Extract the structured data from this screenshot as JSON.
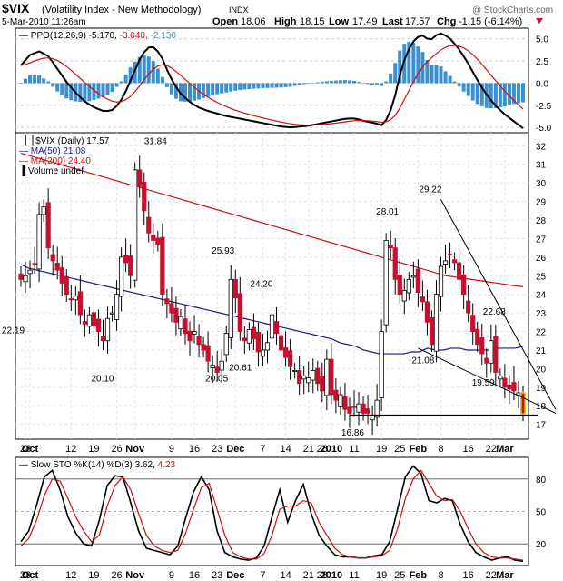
{
  "header": {
    "symbol": "$VIX",
    "name": "(Volatility Index - New Methodology)",
    "exchange": "INDX",
    "datetime": "5-Mar-2010 11:26am",
    "watermark": "@ StockCharts.com",
    "open_label": "Open",
    "open": "18.06",
    "high_label": "High",
    "high": "18.15",
    "low_label": "Low",
    "low": "17.49",
    "last_label": "Last",
    "last": "17.57",
    "chg_label": "Chg",
    "chg": "-1.15 (-6.14%)"
  },
  "ppo_panel": {
    "legend_prefix": "PPO(12,26,9)",
    "v1": "-5.170,",
    "v2": "-3.040,",
    "v3": "-2.130",
    "ticks": [
      "5.0",
      "2.5",
      "0.0",
      "-2.5",
      "-5.0"
    ],
    "ylim": [
      -5.6,
      6.2
    ]
  },
  "price_panel": {
    "legend_symbol": "$VIX (Daily) 17.57",
    "legend_ma50": "MA(50) 21.08",
    "legend_ma200": "MA(200) 24.40",
    "legend_volume": "Volume undef",
    "ticks": [
      "32",
      "31",
      "30",
      "29",
      "28",
      "27",
      "26",
      "25",
      "24",
      "23",
      "22",
      "21",
      "20",
      "19",
      "18",
      "17"
    ],
    "ylim": [
      16.2,
      32.7
    ],
    "annotations": [
      "22.19",
      "31.84",
      "20.10",
      "25.93",
      "20.05",
      "20.61",
      "24.20",
      "28.01",
      "16.86",
      "29.22",
      "21.08",
      "22.68",
      "19.59"
    ]
  },
  "sto_panel": {
    "legend_prefix": "Slow STO %K(14) %D(3)",
    "k": "3.62,",
    "d": "4.23",
    "ticks": [
      "80",
      "50",
      "20"
    ],
    "ylim": [
      0,
      100
    ]
  },
  "x_labels": [
    "28",
    "Oct",
    "12",
    "19",
    "26",
    "Nov",
    "9",
    "16",
    "23",
    "Dec",
    "7",
    "14",
    "21",
    "28",
    "2010",
    "11",
    "19",
    "25",
    "Feb",
    "8",
    "16",
    "22",
    "Mar"
  ],
  "colors": {
    "up": "#ffffff",
    "down": "#c8102e",
    "ma50": "#1a1a8c",
    "ma200": "#cc1111",
    "histogram": "#3c8fd0",
    "ppo": "#000000",
    "signal": "#cc1111",
    "sto_k": "#000000",
    "sto_d": "#cc1111",
    "last_bar": "#f0d000"
  },
  "chart_data": {
    "type": "candlestick",
    "x": [
      "2009-09-25",
      "2009-09-28",
      "2009-09-29",
      "2009-09-30",
      "2009-10-01",
      "2009-10-02",
      "2009-10-05",
      "2009-10-06",
      "2009-10-07",
      "2009-10-08",
      "2009-10-09",
      "2009-10-12",
      "2009-10-13",
      "2009-10-14",
      "2009-10-15",
      "2009-10-16",
      "2009-10-19",
      "2009-10-20",
      "2009-10-21",
      "2009-10-22",
      "2009-10-23",
      "2009-10-26",
      "2009-10-27",
      "2009-10-28",
      "2009-10-29",
      "2009-10-30",
      "2009-11-02",
      "2009-11-03",
      "2009-11-04",
      "2009-11-05",
      "2009-11-06",
      "2009-11-09",
      "2009-11-10",
      "2009-11-11",
      "2009-11-12",
      "2009-11-13",
      "2009-11-16",
      "2009-11-17",
      "2009-11-18",
      "2009-11-19",
      "2009-11-20",
      "2009-11-23",
      "2009-11-24",
      "2009-11-25",
      "2009-11-27",
      "2009-11-30",
      "2009-12-01",
      "2009-12-02",
      "2009-12-03",
      "2009-12-04",
      "2009-12-07",
      "2009-12-08",
      "2009-12-09",
      "2009-12-10",
      "2009-12-11",
      "2009-12-14",
      "2009-12-15",
      "2009-12-16",
      "2009-12-17",
      "2009-12-18",
      "2009-12-21",
      "2009-12-22",
      "2009-12-23",
      "2009-12-24",
      "2009-12-28",
      "2009-12-29",
      "2009-12-30",
      "2009-12-31",
      "2010-01-04",
      "2010-01-05",
      "2010-01-06",
      "2010-01-07",
      "2010-01-08",
      "2010-01-11",
      "2010-01-12",
      "2010-01-13",
      "2010-01-14",
      "2010-01-15",
      "2010-01-19",
      "2010-01-20",
      "2010-01-21",
      "2010-01-22",
      "2010-01-25",
      "2010-01-26",
      "2010-01-27",
      "2010-01-28",
      "2010-01-29",
      "2010-02-01",
      "2010-02-02",
      "2010-02-03",
      "2010-02-04",
      "2010-02-05",
      "2010-02-08",
      "2010-02-09",
      "2010-02-10",
      "2010-02-11",
      "2010-02-12",
      "2010-02-16",
      "2010-02-17",
      "2010-02-18",
      "2010-02-19",
      "2010-02-22",
      "2010-02-23",
      "2010-02-24",
      "2010-02-25",
      "2010-02-26",
      "2010-03-01",
      "2010-03-02",
      "2010-03-03",
      "2010-03-04",
      "2010-03-05"
    ],
    "close": [
      24.8,
      25.0,
      25.3,
      25.6,
      28.3,
      28.7,
      26.5,
      25.8,
      25.3,
      24.6,
      24.0,
      23.7,
      23.9,
      22.9,
      22.4,
      22.9,
      22.3,
      22.0,
      21.5,
      22.7,
      23.0,
      24.0,
      26.0,
      25.7,
      25.0,
      30.7,
      29.8,
      28.5,
      27.3,
      26.9,
      26.7,
      24.0,
      23.5,
      23.0,
      22.5,
      22.8,
      21.9,
      21.5,
      22.0,
      21.3,
      21.0,
      20.4,
      20.2,
      19.8,
      20.4,
      21.9,
      24.8,
      23.8,
      22.0,
      21.5,
      22.1,
      21.6,
      20.9,
      21.0,
      21.4,
      22.9,
      21.9,
      21.0,
      20.6,
      20.1,
      19.9,
      19.2,
      19.6,
      19.5,
      19.9,
      19.2,
      18.8,
      20.5,
      18.6,
      18.3,
      18.6,
      17.8,
      17.6,
      17.9,
      18.1,
      17.6,
      17.6,
      17.5,
      18.3,
      22.0,
      26.9,
      26.5,
      24.8,
      24.0,
      24.2,
      24.8,
      25.0,
      24.1,
      23.6,
      22.5,
      21.3,
      24.0,
      25.5,
      25.8,
      26.1,
      25.7,
      24.8,
      24.0,
      23.0,
      22.0,
      21.3,
      20.8,
      20.3,
      21.5,
      19.8,
      19.6,
      19.0,
      18.9,
      18.8,
      18.7,
      17.57
    ],
    "ma50": [
      25.6,
      25.4,
      25.3,
      25.2,
      25.1,
      25.0,
      24.9,
      24.8,
      24.7,
      24.6,
      24.5,
      24.4,
      24.3,
      24.2,
      24.1,
      24.0,
      23.9,
      23.8,
      23.7,
      23.6,
      23.5,
      23.4,
      23.3,
      23.2,
      23.1,
      23.0,
      22.9,
      22.8,
      22.7,
      22.6,
      22.5,
      22.4,
      22.3,
      22.2,
      22.1,
      22.0,
      21.9,
      21.8,
      21.7,
      21.6,
      21.4,
      21.3,
      21.2,
      21.0,
      20.9,
      20.8,
      20.8,
      20.8,
      20.8,
      20.9,
      20.9,
      21.1,
      21.0,
      21.0,
      21.1,
      21.1,
      21.0,
      21.0,
      21.0,
      21.0,
      21.1,
      21.1,
      21.1,
      21.2
    ],
    "ma200": [
      31.6,
      31.4,
      31.2,
      31.0,
      30.8,
      30.6,
      30.4,
      30.2,
      30.0,
      29.8,
      29.6,
      29.4,
      29.2,
      29.0,
      28.8,
      28.6,
      28.4,
      28.2,
      28.0,
      27.8,
      27.6,
      27.4,
      27.2,
      27.0,
      26.8,
      26.6,
      26.4,
      26.2,
      26.0,
      25.8,
      25.6,
      25.4,
      25.2,
      25.0,
      24.9,
      24.8,
      24.7,
      24.6,
      24.5,
      24.4
    ],
    "ppo": [
      2.0,
      3.2,
      3.6,
      3.0,
      1.5,
      0.0,
      -1.2,
      -2.2,
      -2.8,
      -3.2,
      -3.0,
      -1.6,
      0.8,
      3.2,
      4.3,
      3.3,
      0.8,
      -1.0,
      -2.0,
      -2.7,
      -3.1,
      -3.4,
      -3.7,
      -3.9,
      -4.1,
      -4.3,
      -4.5,
      -4.7,
      -4.9,
      -5.0,
      -4.9,
      -4.8,
      -4.6,
      -4.4,
      -4.2,
      -4.0,
      -4.0,
      -4.3,
      -4.5,
      -4.8,
      -2.5,
      2.0,
      4.5,
      5.5,
      4.8,
      5.7,
      5.2,
      4.0,
      2.4,
      0.5,
      -1.2,
      -2.5,
      -3.5,
      -4.3,
      -5.1
    ],
    "sto_k": [
      22,
      32,
      56,
      82,
      88,
      70,
      45,
      30,
      20,
      18,
      42,
      74,
      83,
      82,
      58,
      32,
      16,
      14,
      12,
      10,
      18,
      44,
      68,
      82,
      70,
      32,
      12,
      8,
      6,
      5,
      7,
      18,
      45,
      70,
      40,
      60,
      75,
      48,
      28,
      18,
      10,
      8,
      8,
      7,
      7,
      9,
      10,
      22,
      52,
      82,
      92,
      85,
      60,
      58,
      62,
      60,
      38,
      22,
      12,
      8,
      5,
      7,
      8,
      5,
      4
    ],
    "sto_d": [
      18,
      25,
      42,
      65,
      80,
      78,
      62,
      45,
      32,
      22,
      28,
      55,
      74,
      82,
      70,
      48,
      28,
      18,
      14,
      12,
      14,
      30,
      52,
      72,
      76,
      52,
      28,
      12,
      8,
      6,
      6,
      11,
      28,
      52,
      55,
      55,
      60,
      58,
      40,
      28,
      16,
      10,
      8,
      7,
      7,
      8,
      9,
      14,
      34,
      62,
      80,
      88,
      76,
      64,
      60,
      61,
      50,
      34,
      20,
      12,
      8,
      7,
      7,
      6,
      5
    ],
    "trendlines": [
      "channel-upper",
      "channel-lower",
      "support-17.5"
    ]
  }
}
